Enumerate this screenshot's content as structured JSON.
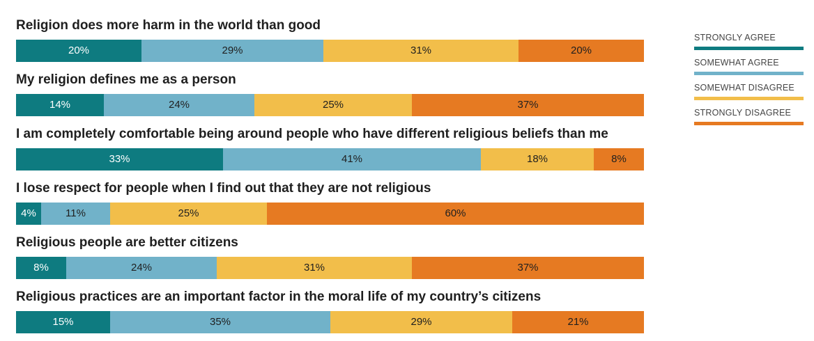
{
  "colors": {
    "strongly_agree": "#0E7B80",
    "somewhat_agree": "#71B2C9",
    "somewhat_disagree": "#F2BE4A",
    "strongly_disagree": "#E67A22"
  },
  "legend": [
    {
      "label": "STRONGLY AGREE",
      "color_key": "strongly_agree"
    },
    {
      "label": "SOMEWHAT AGREE",
      "color_key": "somewhat_agree"
    },
    {
      "label": "SOMEWHAT DISAGREE",
      "color_key": "somewhat_disagree"
    },
    {
      "label": "STRONGLY DISAGREE",
      "color_key": "strongly_disagree"
    }
  ],
  "chart_data": {
    "type": "bar",
    "orientation": "horizontal",
    "stacked": "100%",
    "title": "",
    "categories": [
      "Religion does more harm in the world than good",
      "My religion defines me as a person",
      "I am completely comfortable being around people who have different religious beliefs than me",
      "I lose respect for people when I find out that they are not religious",
      "Religious people are better citizens",
      "Religious practices are an important factor in the moral life of my country’s citizens"
    ],
    "series": [
      {
        "name": "STRONGLY AGREE",
        "color_key": "strongly_agree",
        "values": [
          20,
          14,
          33,
          4,
          8,
          15
        ],
        "labels": [
          "20%",
          "14%",
          "33%",
          "4%",
          "8%",
          "15%"
        ]
      },
      {
        "name": "SOMEWHAT AGREE",
        "color_key": "somewhat_agree",
        "values": [
          29,
          24,
          41,
          11,
          24,
          35
        ],
        "labels": [
          "29%",
          "24%",
          "41%",
          "11%",
          "24%",
          "35%"
        ]
      },
      {
        "name": "SOMEWHAT DISAGREE",
        "color_key": "somewhat_disagree",
        "values": [
          31,
          25,
          18,
          25,
          31,
          29
        ],
        "labels": [
          "31%",
          "25%",
          "18%",
          "25%",
          "31%",
          "29%"
        ]
      },
      {
        "name": "STRONGLY DISAGREE",
        "color_key": "strongly_disagree",
        "values": [
          20,
          37,
          8,
          60,
          37,
          21
        ],
        "labels": [
          "20%",
          "37%",
          "8%",
          "60%",
          "37%",
          "21%"
        ]
      }
    ],
    "xlim": [
      0,
      100
    ],
    "grid": false,
    "legend_position": "top-right"
  }
}
